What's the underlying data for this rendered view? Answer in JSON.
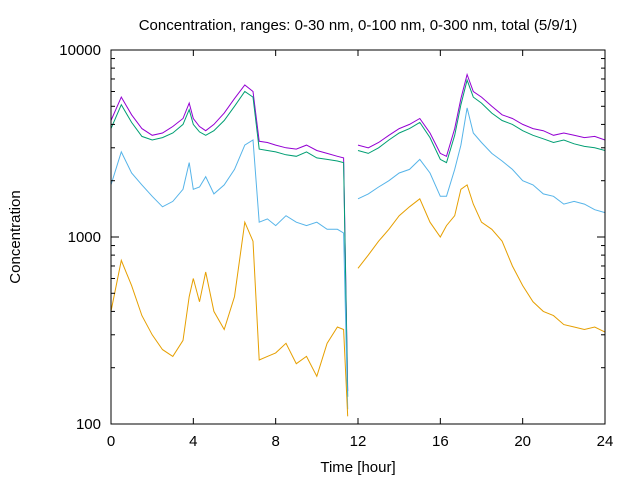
{
  "chart_data": {
    "type": "line",
    "title": "Concentration, ranges: 0-30 nm, 0-100 nm, 0-300 nm, total (5/9/1)",
    "xlabel": "Time [hour]",
    "ylabel": "Concentration",
    "xlim": [
      0,
      24
    ],
    "ylim": [
      100,
      10000
    ],
    "yscale": "log",
    "grid": false,
    "legend": "none",
    "x_ticks": [
      "0",
      "4",
      "8",
      "12",
      "16",
      "20",
      "24"
    ],
    "y_ticks": [
      "100",
      "1000",
      "10000"
    ],
    "x": [
      0,
      0.5,
      1,
      1.5,
      2,
      2.5,
      3,
      3.5,
      3.8,
      4,
      4.3,
      4.6,
      5,
      5.5,
      6,
      6.5,
      6.9,
      7.2,
      7.6,
      8,
      8.5,
      9,
      9.5,
      10,
      10.5,
      11,
      11.3,
      11.5,
      11.65,
      12,
      12.5,
      13,
      13.5,
      14,
      14.5,
      15,
      15.5,
      16,
      16.3,
      16.7,
      17,
      17.3,
      17.6,
      18,
      18.5,
      19,
      19.5,
      20,
      20.5,
      21,
      21.5,
      22,
      22.5,
      23,
      23.5,
      24
    ],
    "series": [
      {
        "color": "#9400d3",
        "values": [
          4200,
          5600,
          4500,
          3800,
          3500,
          3600,
          3900,
          4300,
          5200,
          4300,
          3900,
          3700,
          4000,
          4600,
          5500,
          6500,
          6000,
          3250,
          3200,
          3100,
          3000,
          2950,
          3100,
          2900,
          2800,
          2700,
          2650,
          150,
          null,
          3100,
          3000,
          3200,
          3500,
          3800,
          4000,
          4300,
          3600,
          2800,
          2700,
          3800,
          5500,
          7400,
          6000,
          5600,
          5000,
          4500,
          4300,
          4000,
          3800,
          3700,
          3500,
          3600,
          3500,
          3400,
          3450,
          3300
        ]
      },
      {
        "color": "#009e73",
        "values": [
          3800,
          5100,
          4100,
          3450,
          3300,
          3400,
          3600,
          4000,
          4800,
          4000,
          3650,
          3500,
          3700,
          4200,
          5000,
          6000,
          5600,
          2950,
          2900,
          2850,
          2750,
          2700,
          2850,
          2650,
          2600,
          2550,
          2500,
          140,
          null,
          2900,
          2800,
          3000,
          3300,
          3600,
          3800,
          4100,
          3400,
          2600,
          2500,
          3500,
          5100,
          6900,
          5600,
          5200,
          4600,
          4200,
          4000,
          3700,
          3500,
          3350,
          3200,
          3300,
          3150,
          3050,
          3000,
          2900
        ]
      },
      {
        "color": "#56b4e9",
        "values": [
          1900,
          2850,
          2200,
          1900,
          1650,
          1450,
          1550,
          1800,
          2500,
          1800,
          1850,
          2100,
          1700,
          1900,
          2300,
          3100,
          3300,
          1200,
          1250,
          1150,
          1300,
          1200,
          1150,
          1200,
          1100,
          1100,
          1050,
          120,
          null,
          1600,
          1700,
          1850,
          2000,
          2200,
          2300,
          2600,
          2200,
          1650,
          1650,
          2300,
          3100,
          4900,
          3600,
          3200,
          2800,
          2550,
          2300,
          2000,
          1900,
          1700,
          1650,
          1500,
          1550,
          1500,
          1400,
          1350
        ]
      },
      {
        "color": "#e69f00",
        "values": [
          400,
          750,
          550,
          380,
          300,
          250,
          230,
          280,
          480,
          600,
          450,
          650,
          400,
          320,
          480,
          1200,
          950,
          220,
          230,
          240,
          270,
          210,
          230,
          180,
          270,
          330,
          320,
          110,
          null,
          680,
          800,
          950,
          1100,
          1300,
          1450,
          1600,
          1200,
          1000,
          1150,
          1300,
          1800,
          1900,
          1500,
          1200,
          1100,
          950,
          700,
          550,
          450,
          400,
          380,
          340,
          330,
          320,
          330,
          310
        ]
      }
    ]
  }
}
